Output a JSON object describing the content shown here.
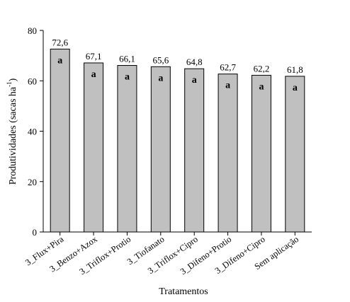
{
  "chart_data": {
    "type": "bar",
    "title": "",
    "xlabel": "Tratamentos",
    "ylabel_main": "Produtividades (sacas ha",
    "ylabel_sup": "-1",
    "ylabel_close": ")",
    "ylim": [
      0,
      80
    ],
    "yticks": [
      0,
      20,
      40,
      60,
      80
    ],
    "grid": false,
    "legend": "none",
    "categories": [
      "3_Flux+Pira",
      "3_Benzo+Azox",
      "3_Triflox+Protio",
      "3_Tiofanato",
      "3_Triflox+Cipro",
      "3_Difeno+Protio",
      "3_Difeno+Cipro",
      "Sem aplicação"
    ],
    "values": [
      72.6,
      67.1,
      66.1,
      65.6,
      64.8,
      62.7,
      62.2,
      61.8
    ],
    "value_labels": [
      "72,6",
      "67,1",
      "66,1",
      "65,6",
      "64,8",
      "62,7",
      "62,2",
      "61,8"
    ],
    "group_letters": [
      "a",
      "a",
      "a",
      "a",
      "a",
      "a",
      "a",
      "a"
    ],
    "bar_color": "#c0c0c0",
    "bar_edge_color": "#000000"
  }
}
